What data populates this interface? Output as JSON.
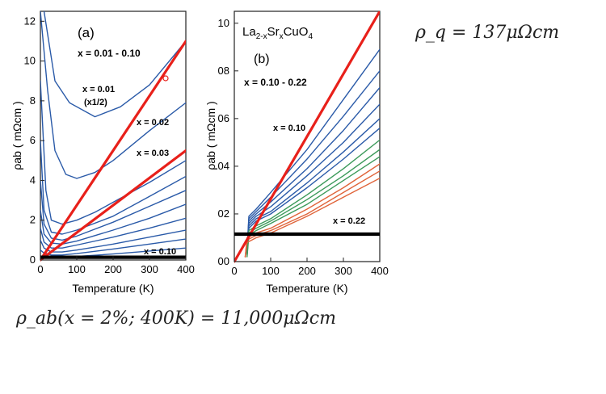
{
  "equations": {
    "rho_q": "ρ_q = 137μΩcm",
    "rho_ab": "ρ_ab(x = 2%; 400K) = 11,000μΩcm"
  },
  "colors": {
    "blue": "#2a5aa8",
    "green": "#3c9a5a",
    "orange": "#e0643a",
    "red": "#e8201a",
    "black": "#000000"
  },
  "chart_data": [
    {
      "panel_label": "(a)",
      "type": "line",
      "xlabel": "Temperature (K)",
      "ylabel": "ρab ( mΩcm )",
      "xlim": [
        0,
        400
      ],
      "ylim": [
        0,
        12.5
      ],
      "xticks": [
        "0",
        "100",
        "200",
        "300",
        "400"
      ],
      "yticks": [
        "0",
        "2",
        "4",
        "6",
        "8",
        "10",
        "12"
      ],
      "annotations": [
        "x = 0.01 - 0.10",
        "x = 0.01",
        "(x1/2)",
        "x = 0.02",
        "x = 0.03",
        "x = 0.10"
      ],
      "series": [
        {
          "color": "blue",
          "x": [
            10,
            40,
            80,
            150,
            220,
            300,
            400
          ],
          "y": [
            12.5,
            9.0,
            7.9,
            7.2,
            7.7,
            8.8,
            11.0
          ]
        },
        {
          "color": "blue",
          "x": [
            0,
            20,
            40,
            70,
            100,
            150,
            200,
            300,
            400
          ],
          "y": [
            12.5,
            8.5,
            5.5,
            4.3,
            4.1,
            4.4,
            5.0,
            6.5,
            7.9
          ]
        },
        {
          "color": "blue",
          "x": [
            0,
            15,
            30,
            60,
            100,
            150,
            200,
            300,
            400
          ],
          "y": [
            9.0,
            3.5,
            2.0,
            1.8,
            2.0,
            2.4,
            2.9,
            3.9,
            5.0
          ]
        },
        {
          "color": "blue",
          "x": [
            0,
            10,
            30,
            60,
            100,
            200,
            300,
            400
          ],
          "y": [
            6.0,
            2.5,
            1.4,
            1.3,
            1.5,
            2.2,
            3.2,
            4.2
          ]
        },
        {
          "color": "blue",
          "x": [
            0,
            10,
            30,
            60,
            100,
            200,
            300,
            400
          ],
          "y": [
            4.0,
            1.8,
            1.1,
            1.0,
            1.2,
            1.9,
            2.7,
            3.5
          ]
        },
        {
          "color": "blue",
          "x": [
            0,
            10,
            30,
            60,
            100,
            200,
            300,
            400
          ],
          "y": [
            2.5,
            1.3,
            0.85,
            0.8,
            0.95,
            1.5,
            2.1,
            2.8
          ]
        },
        {
          "color": "blue",
          "x": [
            0,
            10,
            30,
            60,
            100,
            200,
            300,
            400
          ],
          "y": [
            1.6,
            0.9,
            0.6,
            0.6,
            0.75,
            1.15,
            1.6,
            2.1
          ]
        },
        {
          "color": "blue",
          "x": [
            0,
            10,
            30,
            60,
            100,
            200,
            300,
            400
          ],
          "y": [
            1.0,
            0.6,
            0.4,
            0.4,
            0.5,
            0.8,
            1.15,
            1.5
          ]
        },
        {
          "color": "blue",
          "x": [
            0,
            10,
            30,
            60,
            100,
            200,
            300,
            400
          ],
          "y": [
            0.5,
            0.35,
            0.25,
            0.25,
            0.32,
            0.55,
            0.8,
            1.05
          ]
        },
        {
          "color": "blue",
          "x": [
            0,
            30,
            100,
            200,
            300,
            400
          ],
          "y": [
            0.18,
            0.16,
            0.18,
            0.3,
            0.45,
            0.6
          ]
        },
        {
          "color": "red",
          "x": [
            0,
            400
          ],
          "y": [
            0,
            11.0
          ]
        },
        {
          "color": "red",
          "x": [
            0,
            400
          ],
          "y": [
            0,
            5.5
          ]
        },
        {
          "color": "black",
          "x": [
            0,
            400
          ],
          "y": [
            0.137,
            0.137
          ]
        }
      ]
    },
    {
      "panel_label": "(b)",
      "type": "line",
      "title": "La2-xSrxCuO4",
      "xlabel": "Temperature (K)",
      "ylabel": "ρab ( mΩcm )",
      "xlim": [
        0,
        400
      ],
      "ylim": [
        0,
        1.05
      ],
      "xticks": [
        "0",
        "100",
        "200",
        "300",
        "400"
      ],
      "yticks": [
        "00",
        "02",
        "04",
        "06",
        "08",
        "10"
      ],
      "annotations": [
        "x = 0.10 - 0.22",
        "x = 0.10",
        "x = 0.22"
      ],
      "series": [
        {
          "color": "blue",
          "x": [
            35,
            40,
            60,
            100,
            200,
            300,
            400
          ],
          "y": [
            0.05,
            0.19,
            0.22,
            0.29,
            0.47,
            0.68,
            0.89
          ]
        },
        {
          "color": "blue",
          "x": [
            35,
            40,
            60,
            100,
            200,
            300,
            400
          ],
          "y": [
            0.04,
            0.18,
            0.21,
            0.27,
            0.43,
            0.61,
            0.8
          ]
        },
        {
          "color": "blue",
          "x": [
            35,
            40,
            60,
            100,
            200,
            300,
            400
          ],
          "y": [
            0.04,
            0.17,
            0.2,
            0.25,
            0.39,
            0.55,
            0.73
          ]
        },
        {
          "color": "blue",
          "x": [
            35,
            40,
            60,
            100,
            200,
            300,
            400
          ],
          "y": [
            0.03,
            0.16,
            0.19,
            0.23,
            0.36,
            0.5,
            0.66
          ]
        },
        {
          "color": "blue",
          "x": [
            35,
            40,
            60,
            100,
            200,
            300,
            400
          ],
          "y": [
            0.03,
            0.15,
            0.18,
            0.21,
            0.33,
            0.46,
            0.6
          ]
        },
        {
          "color": "blue",
          "x": [
            35,
            40,
            60,
            100,
            200,
            300,
            400
          ],
          "y": [
            0.03,
            0.14,
            0.17,
            0.2,
            0.31,
            0.43,
            0.56
          ]
        },
        {
          "color": "green",
          "x": [
            35,
            40,
            60,
            100,
            200,
            300,
            400
          ],
          "y": [
            0.03,
            0.13,
            0.15,
            0.18,
            0.28,
            0.39,
            0.51
          ]
        },
        {
          "color": "green",
          "x": [
            35,
            40,
            60,
            100,
            200,
            300,
            400
          ],
          "y": [
            0.03,
            0.12,
            0.14,
            0.17,
            0.26,
            0.36,
            0.47
          ]
        },
        {
          "color": "green",
          "x": [
            35,
            40,
            60,
            100,
            200,
            300,
            400
          ],
          "y": [
            0.02,
            0.11,
            0.13,
            0.16,
            0.24,
            0.34,
            0.44
          ]
        },
        {
          "color": "orange",
          "x": [
            30,
            35,
            60,
            100,
            200,
            300,
            400
          ],
          "y": [
            0.02,
            0.1,
            0.12,
            0.14,
            0.22,
            0.31,
            0.41
          ]
        },
        {
          "color": "orange",
          "x": [
            30,
            35,
            60,
            100,
            200,
            300,
            400
          ],
          "y": [
            0.02,
            0.09,
            0.11,
            0.13,
            0.2,
            0.29,
            0.38
          ]
        },
        {
          "color": "orange",
          "x": [
            30,
            35,
            60,
            100,
            200,
            300,
            400
          ],
          "y": [
            0.02,
            0.08,
            0.1,
            0.12,
            0.19,
            0.27,
            0.35
          ]
        },
        {
          "color": "red",
          "x": [
            0,
            400
          ],
          "y": [
            0,
            1.05
          ]
        },
        {
          "color": "black",
          "x": [
            0,
            400
          ],
          "y": [
            0.115,
            0.115
          ]
        }
      ]
    }
  ]
}
